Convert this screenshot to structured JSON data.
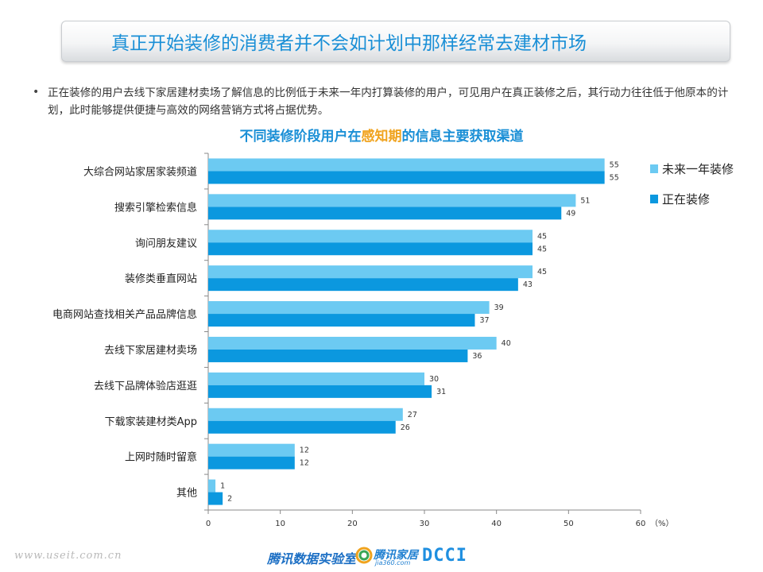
{
  "header": {
    "title": "真正开始装修的消费者并不会如计划中那样经常去建材市场"
  },
  "bullet": {
    "marker": "•",
    "text": "正在装修的用户去线下家居建材卖场了解信息的比例低于未来一年内打算装修的用户，可见用户在真正装修之后，其行动力往往低于他原本的计划，此时能够提供便捷与高效的网络营销方式将占据优势。"
  },
  "chart_data": {
    "type": "bar",
    "orientation": "horizontal",
    "title_parts": [
      "不同装修阶段用户在",
      "感知期",
      "的信息主要获取渠道"
    ],
    "categories": [
      "大综合网站家居家装频道",
      "搜索引擎检索信息",
      "询问朋友建议",
      "装修类垂直网站",
      "电商网站查找相关产品品牌信息",
      "去线下家居建材卖场",
      "去线下品牌体验店逛逛",
      "下载家装建材类App",
      "上网时随时留意",
      "其他"
    ],
    "series": [
      {
        "name": "未来一年装修",
        "color": "#6ccaf2",
        "values": [
          55,
          51,
          45,
          45,
          39,
          40,
          30,
          27,
          12,
          1
        ]
      },
      {
        "name": "正在装修",
        "color": "#0b98df",
        "values": [
          55,
          49,
          45,
          43,
          37,
          36,
          31,
          26,
          12,
          2
        ]
      }
    ],
    "xlim": [
      0,
      60
    ],
    "xticks": [
      0,
      10,
      20,
      30,
      40,
      50,
      60
    ],
    "xunit": "（%）",
    "legend_position": "top-right",
    "grid": false
  },
  "footer": {
    "url": "www.useit.com.cn",
    "lab": "腾讯数据实验室",
    "jia": "腾讯家居",
    "jia_sub": "jia360.com",
    "dcci": "DCCI"
  }
}
